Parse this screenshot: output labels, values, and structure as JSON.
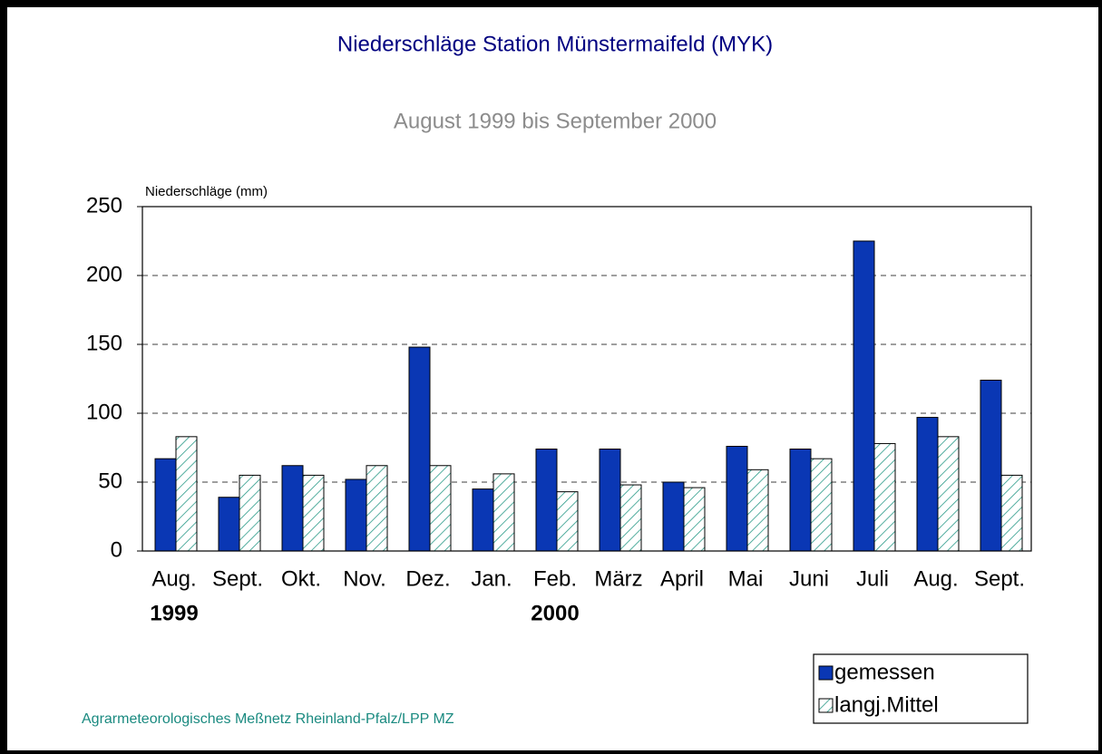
{
  "chart_data": {
    "type": "bar",
    "title": "Niederschläge Station Münstermaifeld (MYK)",
    "subtitle": "August 1999 bis September 2000",
    "y_label": "Niederschläge (mm)",
    "categories": [
      "Aug.",
      "Sept.",
      "Okt.",
      "Nov.",
      "Dez.",
      "Jan.",
      "Feb.",
      "März",
      "April",
      "Mai",
      "Juni",
      "Juli",
      "Aug.",
      "Sept."
    ],
    "year_labels": [
      "1999",
      "2000"
    ],
    "series": [
      {
        "name": "gemessen",
        "color": "#0a37b4",
        "values": [
          67,
          39,
          62,
          52,
          148,
          45,
          74,
          74,
          50,
          76,
          74,
          225,
          97,
          124
        ]
      },
      {
        "name": "langj.Mittel",
        "color": "#2a9a88",
        "values": [
          83,
          55,
          55,
          62,
          62,
          56,
          43,
          48,
          46,
          59,
          67,
          78,
          83,
          55
        ]
      }
    ],
    "ylim": [
      0,
      250
    ],
    "yticks": [
      0,
      50,
      100,
      150,
      200,
      250
    ],
    "grid": true,
    "legend": "lower right",
    "source": "Agrarmeteorologisches Meßnetz Rheinland-Pfalz/LPP MZ"
  }
}
